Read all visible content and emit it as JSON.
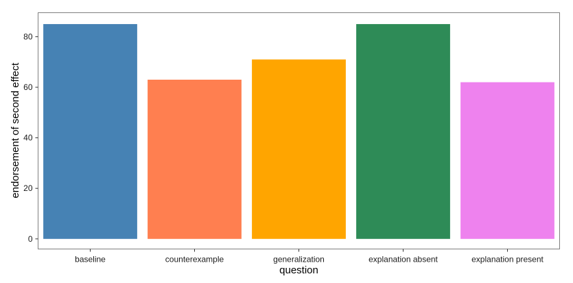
{
  "chart_data": {
    "type": "bar",
    "xlabel": "question",
    "ylabel": "endorsement of second effect",
    "categories": [
      "baseline",
      "counterexample",
      "generalization",
      "explanation absent",
      "explanation present"
    ],
    "values": [
      85,
      63,
      71,
      85,
      62
    ],
    "colors": [
      "#4682B4",
      "#FF7F50",
      "#FFA500",
      "#2E8B57",
      "#EE82EE"
    ],
    "ylim": [
      -4,
      89.5
    ],
    "yticks": [
      0,
      20,
      40,
      60,
      80
    ],
    "grid": false,
    "legend": "none"
  }
}
